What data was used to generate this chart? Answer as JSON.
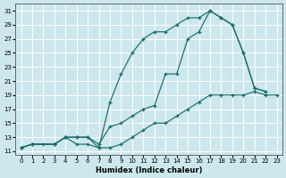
{
  "xlabel": "Humidex (Indice chaleur)",
  "bg_color": "#cce8ec",
  "grid_color": "#ffffff",
  "line_color": "#1a6b6b",
  "xlim": [
    -0.5,
    23.5
  ],
  "ylim": [
    10.5,
    32
  ],
  "xticks": [
    0,
    1,
    2,
    3,
    4,
    5,
    6,
    7,
    8,
    9,
    10,
    11,
    12,
    13,
    14,
    15,
    16,
    17,
    18,
    19,
    20,
    21,
    22,
    23
  ],
  "yticks": [
    11,
    13,
    15,
    17,
    19,
    21,
    23,
    25,
    27,
    29,
    31
  ],
  "line1_x": [
    0,
    1,
    2,
    3,
    4,
    5,
    6,
    7,
    8,
    9,
    10,
    11,
    12,
    13,
    14,
    15,
    16,
    17,
    18,
    19,
    20,
    21,
    22,
    23
  ],
  "line1_y": [
    11.5,
    12,
    12,
    12,
    13,
    12,
    12,
    11.5,
    11.5,
    12,
    13,
    14,
    15,
    15,
    16,
    17,
    18,
    19,
    19,
    19,
    19,
    19.5,
    19,
    19
  ],
  "line2_x": [
    0,
    1,
    3,
    4,
    5,
    6,
    7,
    8,
    9,
    10,
    11,
    12,
    13,
    14,
    15,
    16,
    17,
    18,
    19,
    20,
    21,
    22
  ],
  "line2_y": [
    11.5,
    12,
    12,
    13,
    13,
    13,
    11.5,
    18,
    22,
    25,
    27,
    28,
    28,
    29,
    30,
    30,
    31,
    30,
    29,
    25,
    20,
    19.5
  ],
  "line3_x": [
    0,
    1,
    3,
    4,
    5,
    6,
    7,
    8,
    9,
    10,
    11,
    12,
    13,
    14,
    15,
    16,
    17,
    18,
    19,
    20,
    21,
    22
  ],
  "line3_y": [
    11.5,
    12,
    12,
    13,
    13,
    13,
    12,
    14.5,
    15,
    16,
    17,
    17.5,
    22,
    22,
    27,
    28,
    31,
    30,
    29,
    25,
    20,
    19.5
  ]
}
